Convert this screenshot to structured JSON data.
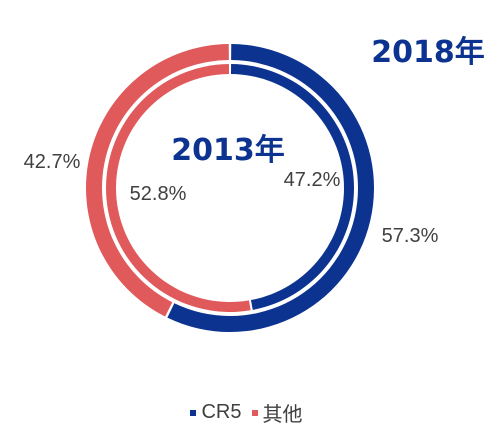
{
  "chart_data": [
    {
      "type": "pie",
      "title": "2018年",
      "ring": "outer",
      "categories": [
        "CR5",
        "其他"
      ],
      "values": [
        57.3,
        42.7
      ],
      "labels": [
        "57.3%",
        "42.7%"
      ]
    },
    {
      "type": "pie",
      "title": "2013年",
      "ring": "inner",
      "categories": [
        "CR5",
        "其他"
      ],
      "values": [
        47.2,
        52.8
      ],
      "labels": [
        "47.2%",
        "52.8%"
      ]
    }
  ],
  "legend": {
    "items": [
      {
        "label": "CR5",
        "color": "#0d3390"
      },
      {
        "label": "其他",
        "color": "#e0595b"
      }
    ]
  },
  "colors": {
    "CR5": "#0d3390",
    "其他": "#e0595b",
    "title": "#0d3390",
    "label": "#404040"
  }
}
